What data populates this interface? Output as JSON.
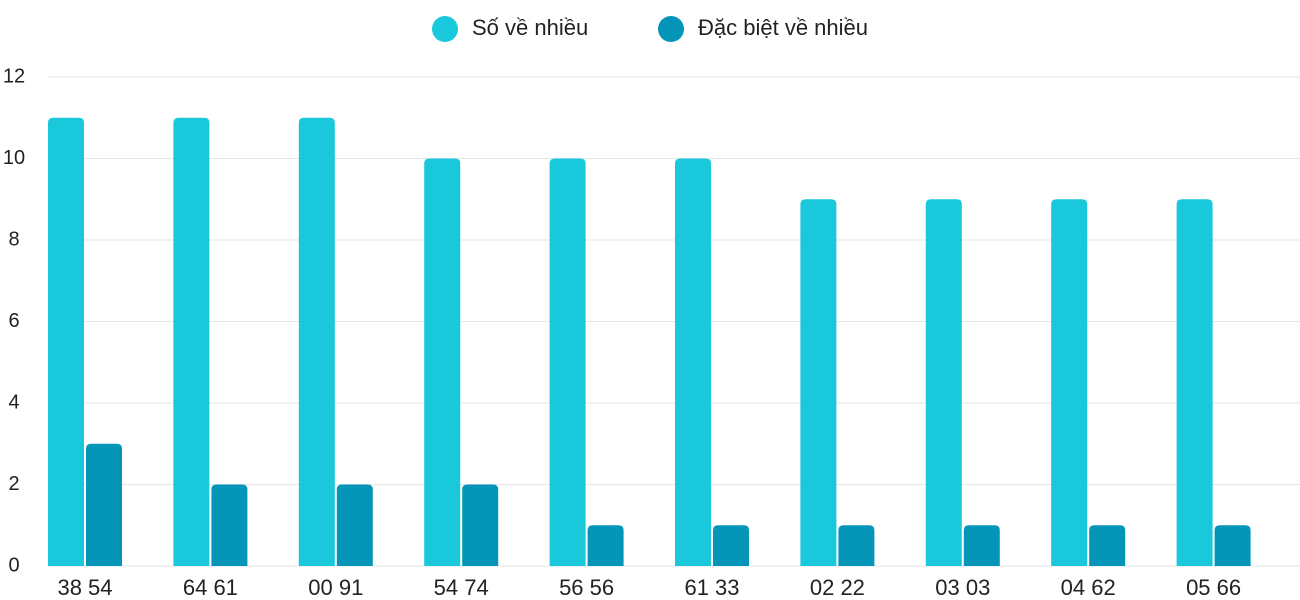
{
  "chart_data": {
    "type": "bar",
    "categories": [
      "38 54",
      "64 61",
      "00 91",
      "54 74",
      "56 56",
      "61 33",
      "02 22",
      "03 03",
      "04 62",
      "05 66"
    ],
    "series": [
      {
        "name": "Số về nhiều",
        "color": "#1ac8dc",
        "values": [
          11,
          11,
          11,
          10,
          10,
          10,
          9,
          9,
          9,
          9
        ]
      },
      {
        "name": "Đặc biệt về nhiều",
        "color": "#0595b8",
        "values": [
          3,
          2,
          2,
          2,
          1,
          1,
          1,
          1,
          1,
          1
        ]
      }
    ],
    "ylim": [
      0,
      12
    ],
    "yticks": [
      0,
      2,
      4,
      6,
      8,
      10,
      12
    ],
    "grid": true,
    "legend": "top"
  }
}
